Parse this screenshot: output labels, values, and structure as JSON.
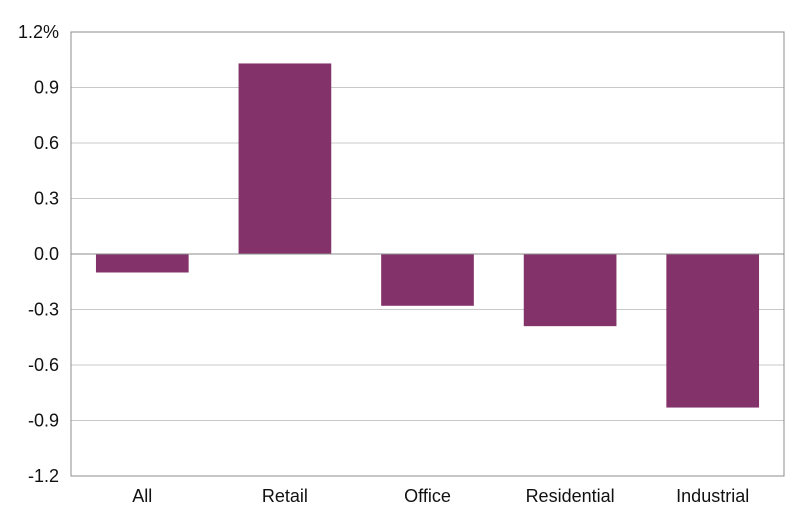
{
  "chart_data": {
    "type": "bar",
    "categories": [
      "All",
      "Retail",
      "Office",
      "Residential",
      "Industrial"
    ],
    "values": [
      -0.1,
      1.03,
      -0.28,
      -0.39,
      -0.83
    ],
    "ylim": [
      -1.2,
      1.2
    ],
    "y_ticks": [
      "1.2%",
      "0.9",
      "0.6",
      "0.3",
      "0.0",
      "-0.3",
      "-0.6",
      "-0.9",
      "-1.2"
    ],
    "grid": true,
    "bar_color": "#84336a",
    "title": "",
    "xlabel": "",
    "ylabel": ""
  }
}
